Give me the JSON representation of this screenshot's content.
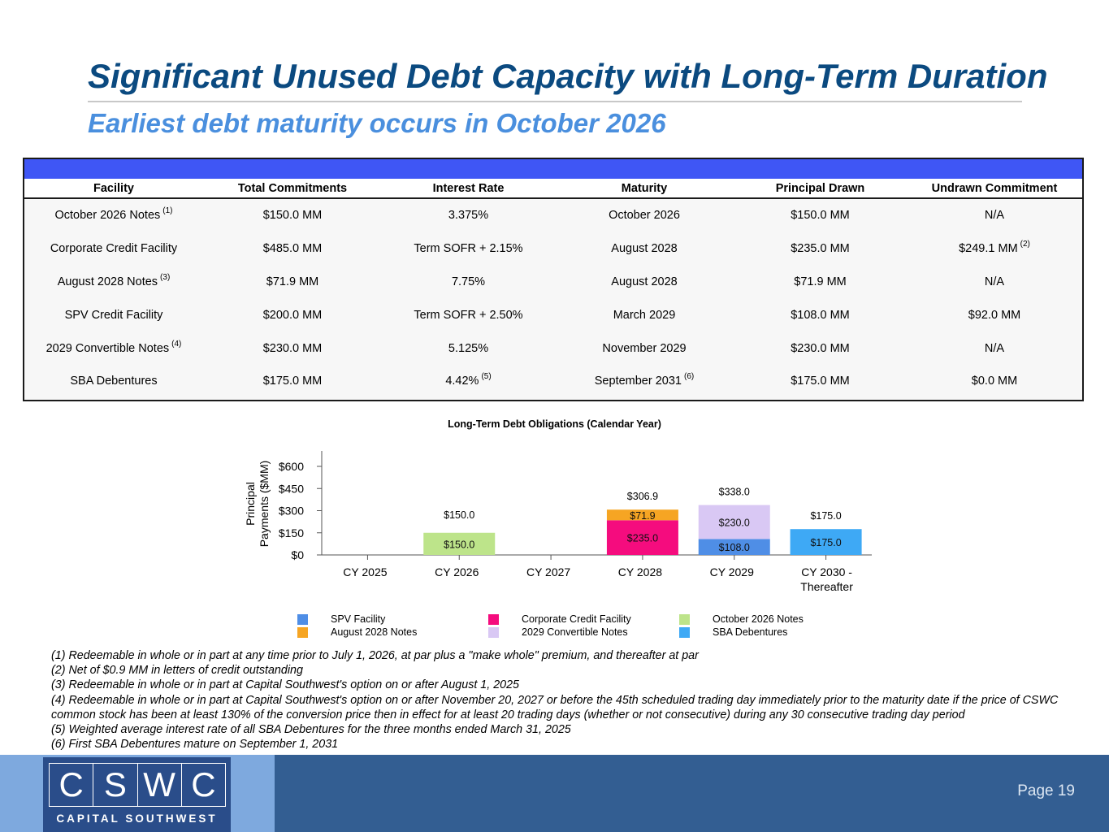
{
  "header": {
    "title": "Significant Unused Debt Capacity with Long-Term Duration",
    "subtitle": "Earliest debt maturity occurs in October 2026"
  },
  "table": {
    "columns": [
      "Facility",
      "Total Commitments",
      "Interest Rate",
      "Maturity",
      "Principal Drawn",
      "Undrawn Commitment"
    ],
    "rows": [
      {
        "facility": "October 2026 Notes",
        "facility_note": "(1)",
        "total": "$150.0 MM",
        "rate": "3.375%",
        "rate_note": "",
        "maturity": "October 2026",
        "maturity_note": "",
        "drawn": "$150.0 MM",
        "undrawn": "N/A",
        "undrawn_note": ""
      },
      {
        "facility": "Corporate Credit Facility",
        "facility_note": "",
        "total": "$485.0 MM",
        "rate": "Term SOFR + 2.15%",
        "rate_note": "",
        "maturity": "August 2028",
        "maturity_note": "",
        "drawn": "$235.0 MM",
        "undrawn": "$249.1 MM",
        "undrawn_note": "(2)"
      },
      {
        "facility": "August 2028 Notes",
        "facility_note": "(3)",
        "total": "$71.9 MM",
        "rate": "7.75%",
        "rate_note": "",
        "maturity": "August 2028",
        "maturity_note": "",
        "drawn": "$71.9 MM",
        "undrawn": "N/A",
        "undrawn_note": ""
      },
      {
        "facility": "SPV Credit Facility",
        "facility_note": "",
        "total": "$200.0 MM",
        "rate": "Term SOFR + 2.50%",
        "rate_note": "",
        "maturity": "March 2029",
        "maturity_note": "",
        "drawn": "$108.0 MM",
        "undrawn": "$92.0 MM",
        "undrawn_note": ""
      },
      {
        "facility": "2029 Convertible Notes",
        "facility_note": "(4)",
        "total": "$230.0 MM",
        "rate": "5.125%",
        "rate_note": "",
        "maturity": "November 2029",
        "maturity_note": "",
        "drawn": "$230.0 MM",
        "undrawn": "N/A",
        "undrawn_note": ""
      },
      {
        "facility": "SBA Debentures",
        "facility_note": "",
        "total": "$175.0 MM",
        "rate": "4.42%",
        "rate_note": "(5)",
        "maturity": "September 2031",
        "maturity_note": "(6)",
        "drawn": "$175.0 MM",
        "undrawn": "$0.0 MM",
        "undrawn_note": ""
      }
    ]
  },
  "chart_data": {
    "type": "bar",
    "stacked": true,
    "title": "Long-Term Debt Obligations (Calendar Year)",
    "ylabel": "Principal Payments ($MM)",
    "ylim": [
      0,
      600
    ],
    "yticks": [
      0,
      150,
      300,
      450,
      600
    ],
    "ytick_labels": [
      "$0",
      "$150",
      "$300",
      "$450",
      "$600"
    ],
    "categories": [
      "CY 2025",
      "CY 2026",
      "CY 2027",
      "CY 2028",
      "CY 2029",
      "CY 2030 - Thereafter"
    ],
    "category_lines": [
      [
        "CY 2025"
      ],
      [
        "CY 2026"
      ],
      [
        "CY 2027"
      ],
      [
        "CY 2028"
      ],
      [
        "CY 2029"
      ],
      [
        "CY 2030 -",
        "Thereafter"
      ]
    ],
    "series": [
      {
        "name": "SPV Facility",
        "color": "#4f8ee6",
        "values": [
          0,
          0,
          0,
          0,
          108.0,
          0
        ]
      },
      {
        "name": "Corporate Credit Facility",
        "color": "#f50c7e",
        "values": [
          0,
          0,
          0,
          235.0,
          0,
          0
        ]
      },
      {
        "name": "October 2026 Notes",
        "color": "#bde48a",
        "values": [
          0,
          150.0,
          0,
          0,
          0,
          0
        ]
      },
      {
        "name": "August 2028 Notes",
        "color": "#f6a523",
        "values": [
          0,
          0,
          0,
          71.9,
          0,
          0
        ]
      },
      {
        "name": "2029 Convertible Notes",
        "color": "#d9c8f4",
        "values": [
          0,
          0,
          0,
          0,
          230.0,
          0
        ]
      },
      {
        "name": "SBA Debentures",
        "color": "#3ea9f5",
        "values": [
          0,
          0,
          0,
          0,
          0,
          175.0
        ]
      }
    ],
    "totals": [
      null,
      150.0,
      null,
      306.9,
      338.0,
      175.0
    ],
    "total_labels": [
      "",
      "$150.0",
      "",
      "$306.9",
      "$338.0",
      "$175.0"
    ],
    "segment_labels": [
      {
        "category": 1,
        "series": 2,
        "text": "$150.0"
      },
      {
        "category": 3,
        "series": 1,
        "text": "$235.0"
      },
      {
        "category": 3,
        "series": 3,
        "text": "$71.9"
      },
      {
        "category": 4,
        "series": 0,
        "text": "$108.0"
      },
      {
        "category": 4,
        "series": 4,
        "text": "$230.0"
      },
      {
        "category": 5,
        "series": 5,
        "text": "$175.0"
      }
    ],
    "grid": false,
    "legend": "bottom"
  },
  "footnotes": [
    "(1) Redeemable in whole or in part at any time prior to July 1, 2026, at par plus a \"make whole\" premium, and thereafter at par",
    "(2) Net of $0.9 MM in letters of credit outstanding",
    "(3) Redeemable in whole or in part at Capital Southwest's option on or after August 1, 2025",
    "(4) Redeemable in whole or in part at Capital Southwest's option on or after November 20, 2027 or before the 45th scheduled trading day immediately prior to the maturity date if the price of CSWC common stock has been at least 130% of the conversion price then in effect for at least 20 trading days (whether or not consecutive) during any 30 consecutive trading day period",
    "(5) Weighted average interest rate of all SBA Debentures for the three months ended March 31, 2025",
    "(6) First SBA Debentures mature on September 1, 2031"
  ],
  "footer": {
    "logo_letters": [
      "C",
      "S",
      "W",
      "C"
    ],
    "logo_text": "CAPITAL SOUTHWEST",
    "page": "Page 19"
  }
}
